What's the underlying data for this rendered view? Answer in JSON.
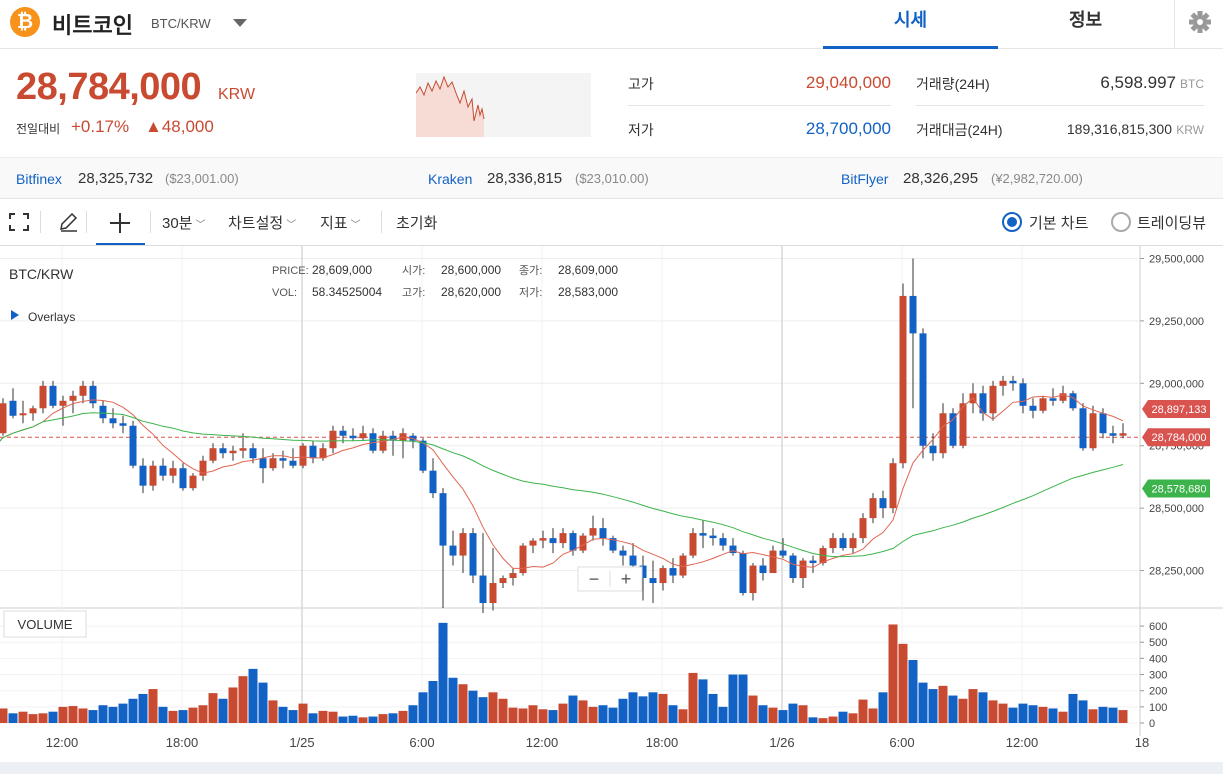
{
  "header": {
    "coin_symbol": "₿",
    "coin_name": "비트코인",
    "pair": "BTC/KRW",
    "tabs": [
      {
        "label": "시세",
        "active": true
      },
      {
        "label": "정보",
        "active": false
      }
    ],
    "settings_icon": "gear-icon"
  },
  "summary": {
    "price": "28,784,000",
    "unit": "KRW",
    "change_label": "전일대비",
    "change_pct": "+0.17%",
    "change_abs": "▲48,000",
    "high_label": "고가",
    "high_value": "29,040,000",
    "low_label": "저가",
    "low_value": "28,700,000",
    "volume_label": "거래량(24H)",
    "volume_value": "6,598.997",
    "volume_unit": "BTC",
    "amount_label": "거래대금(24H)",
    "amount_value": "189,316,815,300",
    "amount_unit": "KRW"
  },
  "exchanges": [
    {
      "name": "Bitfinex",
      "price": "28,325,732",
      "foreign": "($23,001.00)"
    },
    {
      "name": "Kraken",
      "price": "28,336,815",
      "foreign": "($23,010.00)"
    },
    {
      "name": "BitFlyer",
      "price": "28,326,295",
      "foreign": "(¥2,982,720.00)"
    }
  ],
  "toolbar": {
    "fullscreen_icon": "fullscreen-icon",
    "draw_icon": "pencil-icon",
    "crosshair_icon": "crosshair-icon",
    "interval": "30분",
    "chart_settings": "차트설정",
    "indicators": "지표",
    "reset": "초기화",
    "basic_chart": "기본 차트",
    "tradingview": "트레이딩뷰",
    "selected_chart": "기본 차트"
  },
  "chart_info": {
    "symbol": "BTC/KRW",
    "overlays": "Overlays",
    "price_label": "PRICE:",
    "price_value": "28,609,000",
    "vol_label": "VOL:",
    "vol_value": "58.34525004",
    "open_label": "시가:",
    "open_value": "28,600,000",
    "high_label": "고가:",
    "high_value": "28,620,000",
    "close_label": "종가:",
    "close_value": "28,609,000",
    "low_label": "저가:",
    "low_value": "28,583,000",
    "volume_title": "VOLUME",
    "zoom_out": "−",
    "zoom_in": "+"
  },
  "chart_data": {
    "type": "candlestick",
    "interval": "30분",
    "price_axis": {
      "ticks": [
        "28,250,000",
        "28,500,000",
        "28,750,000",
        "29,000,000",
        "29,250,000",
        "29,500,000"
      ],
      "ylim": [
        28100000,
        29550000
      ]
    },
    "time_axis": {
      "labels": [
        "12:00",
        "18:00",
        "1/25",
        "6:00",
        "12:00",
        "18:00",
        "1/26",
        "6:00",
        "12:00",
        "18"
      ]
    },
    "volume_axis": {
      "ticks": [
        "0",
        "100",
        "200",
        "300",
        "400",
        "500",
        "600"
      ],
      "ylim": [
        0,
        650
      ]
    },
    "markers": [
      {
        "label": "28,897,133",
        "value": 28897133,
        "color": "#d9534f"
      },
      {
        "label": "28,784,000",
        "value": 28784000,
        "color": "#d9534f"
      },
      {
        "label": "28,578,680",
        "value": 28578680,
        "color": "#3cb44b"
      }
    ],
    "colors": {
      "up": "#c84a31",
      "down": "#1261c4",
      "ma_short": "#e06552",
      "ma_long": "#3cb44b"
    },
    "candles": [
      [
        28700000,
        28780000,
        28600000,
        28640000,
        75
      ],
      [
        28680000,
        28790000,
        28660000,
        28760000,
        70
      ],
      [
        28760000,
        28850000,
        28740000,
        28810000,
        85
      ],
      [
        28800000,
        28940000,
        28790000,
        28920000,
        90
      ],
      [
        28930000,
        28980000,
        28860000,
        28870000,
        60
      ],
      [
        28880000,
        28930000,
        28840000,
        28880000,
        70
      ],
      [
        28880000,
        28910000,
        28850000,
        28900000,
        55
      ],
      [
        28900000,
        29010000,
        28880000,
        28990000,
        60
      ],
      [
        28990000,
        29010000,
        28900000,
        28910000,
        70
      ],
      [
        28910000,
        28950000,
        28830000,
        28930000,
        100
      ],
      [
        28930000,
        28970000,
        28880000,
        28950000,
        105
      ],
      [
        28950000,
        29010000,
        28920000,
        28990000,
        90
      ],
      [
        28990000,
        29010000,
        28900000,
        28920000,
        80
      ],
      [
        28910000,
        28930000,
        28840000,
        28860000,
        110
      ],
      [
        28860000,
        28900000,
        28820000,
        28840000,
        100
      ],
      [
        28840000,
        28870000,
        28800000,
        28830000,
        120
      ],
      [
        28830000,
        28850000,
        28660000,
        28670000,
        150
      ],
      [
        28670000,
        28700000,
        28560000,
        28590000,
        180
      ],
      [
        28590000,
        28690000,
        28570000,
        28670000,
        210
      ],
      [
        28670000,
        28700000,
        28610000,
        28630000,
        100
      ],
      [
        28630000,
        28690000,
        28600000,
        28660000,
        75
      ],
      [
        28660000,
        28680000,
        28570000,
        28580000,
        80
      ],
      [
        28580000,
        28640000,
        28570000,
        28630000,
        95
      ],
      [
        28630000,
        28710000,
        28610000,
        28690000,
        110
      ],
      [
        28690000,
        28760000,
        28680000,
        28740000,
        185
      ],
      [
        28740000,
        28760000,
        28700000,
        28720000,
        150
      ],
      [
        28720000,
        28750000,
        28690000,
        28730000,
        220
      ],
      [
        28730000,
        28800000,
        28700000,
        28740000,
        290
      ],
      [
        28740000,
        28760000,
        28680000,
        28700000,
        335
      ],
      [
        28700000,
        28740000,
        28600000,
        28660000,
        250
      ],
      [
        28660000,
        28720000,
        28650000,
        28700000,
        140
      ],
      [
        28700000,
        28730000,
        28660000,
        28690000,
        100
      ],
      [
        28690000,
        28740000,
        28660000,
        28670000,
        80
      ],
      [
        28670000,
        28760000,
        28660000,
        28750000,
        120
      ],
      [
        28750000,
        28770000,
        28680000,
        28700000,
        60
      ],
      [
        28700000,
        28760000,
        28690000,
        28740000,
        75
      ],
      [
        28740000,
        28830000,
        28720000,
        28810000,
        70
      ],
      [
        28810000,
        28830000,
        28760000,
        28790000,
        40
      ],
      [
        28790000,
        28820000,
        28770000,
        28780000,
        45
      ],
      [
        28780000,
        28830000,
        28770000,
        28800000,
        35
      ],
      [
        28800000,
        28820000,
        28720000,
        28730000,
        40
      ],
      [
        28730000,
        28810000,
        28720000,
        28790000,
        55
      ],
      [
        28790000,
        28810000,
        28710000,
        28770000,
        60
      ],
      [
        28770000,
        28820000,
        28700000,
        28800000,
        75
      ],
      [
        28790000,
        28800000,
        28740000,
        28770000,
        110
      ],
      [
        28770000,
        28780000,
        28640000,
        28650000,
        190
      ],
      [
        28650000,
        28700000,
        28540000,
        28560000,
        260
      ],
      [
        28560000,
        28580000,
        28100000,
        28350000,
        620
      ],
      [
        28350000,
        28410000,
        28270000,
        28310000,
        280
      ],
      [
        28310000,
        28420000,
        28240000,
        28400000,
        240
      ],
      [
        28400000,
        28420000,
        28200000,
        28230000,
        200
      ],
      [
        28230000,
        28400000,
        28080000,
        28120000,
        160
      ],
      [
        28120000,
        28340000,
        28090000,
        28200000,
        190
      ],
      [
        28200000,
        28230000,
        28180000,
        28220000,
        150
      ],
      [
        28220000,
        28260000,
        28190000,
        28240000,
        95
      ],
      [
        28240000,
        28360000,
        28230000,
        28350000,
        90
      ],
      [
        28350000,
        28380000,
        28320000,
        28370000,
        110
      ],
      [
        28370000,
        28410000,
        28340000,
        28380000,
        85
      ],
      [
        28380000,
        28420000,
        28320000,
        28360000,
        80
      ],
      [
        28360000,
        28420000,
        28340000,
        28400000,
        120
      ],
      [
        28400000,
        28410000,
        28310000,
        28330000,
        170
      ],
      [
        28330000,
        28400000,
        28320000,
        28390000,
        140
      ],
      [
        28390000,
        28470000,
        28370000,
        28420000,
        100
      ],
      [
        28420000,
        28460000,
        28350000,
        28380000,
        110
      ],
      [
        28380000,
        28390000,
        28320000,
        28330000,
        95
      ],
      [
        28330000,
        28350000,
        28270000,
        28310000,
        150
      ],
      [
        28310000,
        28360000,
        28260000,
        28270000,
        190
      ],
      [
        28270000,
        28310000,
        28130000,
        28220000,
        165
      ],
      [
        28220000,
        28290000,
        28120000,
        28200000,
        190
      ],
      [
        28200000,
        28270000,
        28170000,
        28260000,
        180
      ],
      [
        28260000,
        28300000,
        28200000,
        28230000,
        110
      ],
      [
        28230000,
        28320000,
        28220000,
        28310000,
        85
      ],
      [
        28310000,
        28420000,
        28300000,
        28400000,
        310
      ],
      [
        28400000,
        28450000,
        28340000,
        28390000,
        270
      ],
      [
        28390000,
        28420000,
        28350000,
        28380000,
        180
      ],
      [
        28380000,
        28400000,
        28330000,
        28350000,
        100
      ],
      [
        28350000,
        28380000,
        28310000,
        28320000,
        300
      ],
      [
        28320000,
        28330000,
        28150000,
        28160000,
        300
      ],
      [
        28160000,
        28280000,
        28130000,
        28270000,
        170
      ],
      [
        28270000,
        28300000,
        28210000,
        28240000,
        110
      ],
      [
        28240000,
        28350000,
        28240000,
        28330000,
        95
      ],
      [
        28330000,
        28380000,
        28300000,
        28310000,
        80
      ],
      [
        28310000,
        28320000,
        28200000,
        28220000,
        120
      ],
      [
        28220000,
        28300000,
        28180000,
        28290000,
        110
      ],
      [
        28290000,
        28310000,
        28240000,
        28280000,
        35
      ],
      [
        28280000,
        28350000,
        28270000,
        28340000,
        30
      ],
      [
        28340000,
        28400000,
        28320000,
        28380000,
        40
      ],
      [
        28380000,
        28400000,
        28330000,
        28340000,
        70
      ],
      [
        28340000,
        28400000,
        28320000,
        28380000,
        60
      ],
      [
        28380000,
        28480000,
        28360000,
        28460000,
        145
      ],
      [
        28460000,
        28560000,
        28440000,
        28540000,
        90
      ],
      [
        28540000,
        28570000,
        28460000,
        28500000,
        190
      ],
      [
        28500000,
        28700000,
        28480000,
        28680000,
        610
      ],
      [
        28680000,
        29400000,
        28660000,
        29350000,
        490
      ],
      [
        29350000,
        29500000,
        28900000,
        29200000,
        390
      ],
      [
        29200000,
        29220000,
        28700000,
        28750000,
        250
      ],
      [
        28750000,
        28800000,
        28690000,
        28720000,
        210
      ],
      [
        28720000,
        28920000,
        28700000,
        28880000,
        230
      ],
      [
        28880000,
        28900000,
        28740000,
        28750000,
        170
      ],
      [
        28750000,
        28960000,
        28740000,
        28920000,
        150
      ],
      [
        28920000,
        29000000,
        28880000,
        28960000,
        210
      ],
      [
        28960000,
        28990000,
        28850000,
        28880000,
        190
      ],
      [
        28880000,
        29010000,
        28850000,
        28990000,
        140
      ],
      [
        28990000,
        29030000,
        28950000,
        29010000,
        120
      ],
      [
        29010000,
        29030000,
        28970000,
        29000000,
        95
      ],
      [
        29000000,
        29020000,
        28880000,
        28910000,
        120
      ],
      [
        28910000,
        28940000,
        28860000,
        28890000,
        110
      ],
      [
        28890000,
        28950000,
        28880000,
        28940000,
        100
      ],
      [
        28940000,
        28980000,
        28910000,
        28930000,
        90
      ],
      [
        28930000,
        28990000,
        28920000,
        28960000,
        70
      ],
      [
        28960000,
        28970000,
        28890000,
        28900000,
        180
      ],
      [
        28900000,
        28920000,
        28730000,
        28740000,
        140
      ],
      [
        28740000,
        28910000,
        28730000,
        28880000,
        85
      ],
      [
        28880000,
        28900000,
        28780000,
        28800000,
        100
      ],
      [
        28800000,
        28830000,
        28760000,
        28790000,
        95
      ],
      [
        28790000,
        28840000,
        28780000,
        28800000,
        80
      ]
    ]
  }
}
